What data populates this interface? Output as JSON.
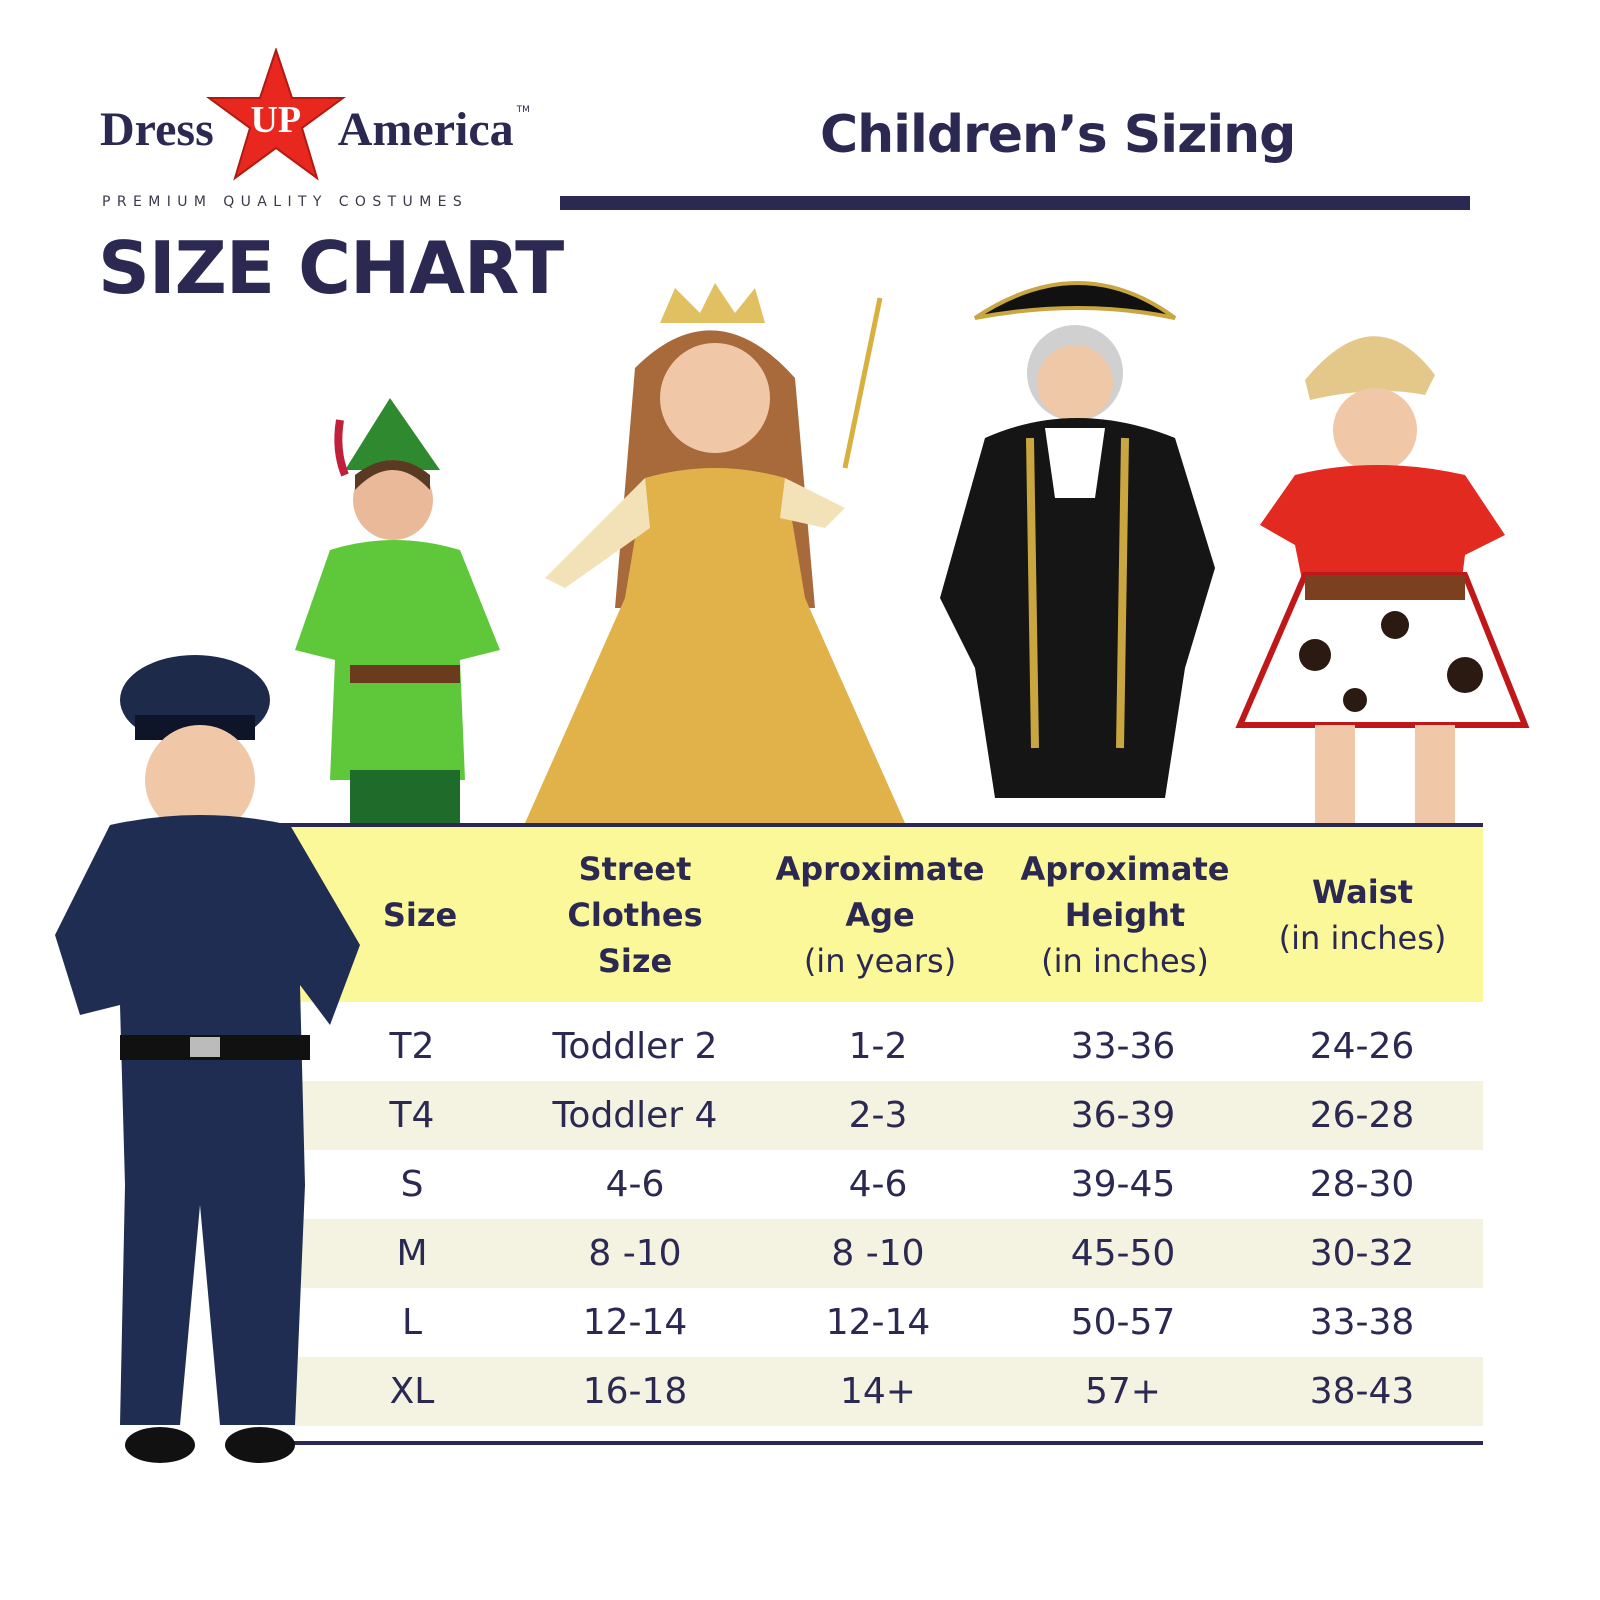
{
  "brand": {
    "logo_text_left": "Dress",
    "logo_text_star": "UP",
    "logo_text_right": "America",
    "trademark": "TM",
    "tagline": "PREMIUM QUALITY COSTUMES",
    "star_color": "#e8281e"
  },
  "title": "SIZE CHART",
  "subtitle": "Children’s Sizing",
  "colors": {
    "navy": "#2b2852",
    "header_bg": "#fbf89a",
    "alt_row": "#f4f2e1"
  },
  "table": {
    "headers": [
      {
        "main": "Size",
        "sub": ""
      },
      {
        "main": "Street Clothes Size",
        "sub": ""
      },
      {
        "main": "Aproximate Age",
        "sub": "(in years)"
      },
      {
        "main": "Aproximate Height",
        "sub": "(in inches)"
      },
      {
        "main": "Waist",
        "sub": "(in inches)"
      }
    ],
    "rows": [
      [
        "T2",
        "Toddler 2",
        "1-2",
        "33-36",
        "24-26"
      ],
      [
        "T4",
        "Toddler 4",
        "2-3",
        "36-39",
        "26-28"
      ],
      [
        "S",
        "4-6",
        "4-6",
        "39-45",
        "28-30"
      ],
      [
        "M",
        "8 -10",
        "8 -10",
        "45-50",
        "30-32"
      ],
      [
        "L",
        "12-14",
        "12-14",
        "50-57",
        "33-38"
      ],
      [
        "XL",
        "16-18",
        "14+",
        "57+",
        "38-43"
      ]
    ]
  }
}
